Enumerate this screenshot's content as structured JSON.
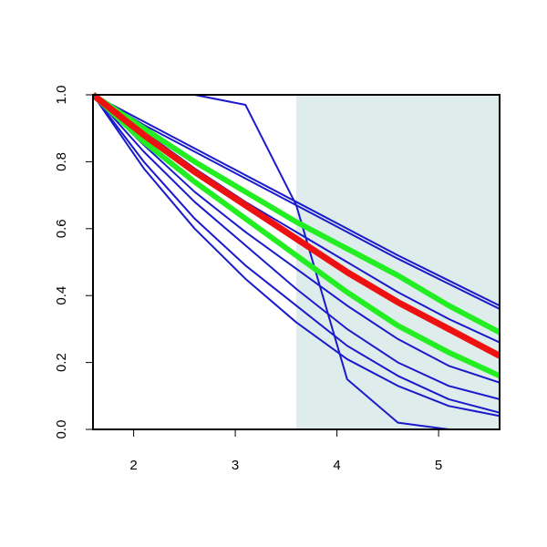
{
  "chart_data": {
    "type": "line",
    "x": [
      1.6,
      2.1,
      2.6,
      3.1,
      3.6,
      4.1,
      4.6,
      5.1,
      5.6
    ],
    "xlim": [
      1.6,
      5.6
    ],
    "xticks": [
      2,
      3,
      4,
      5
    ],
    "ylim": [
      0,
      1
    ],
    "yticks": [
      {
        "value": 0,
        "label": "0.0"
      },
      0.2,
      0.4,
      0.6,
      0.8,
      {
        "value": 1,
        "label": "1.0"
      }
    ],
    "shade": {
      "from": 3.6,
      "color": "#dfecec"
    },
    "series": [
      {
        "color": "#1a1acc",
        "width": 2,
        "values": [
          1,
          0.92,
          0.84,
          0.76,
          0.68,
          0.6,
          0.52,
          0.445,
          0.37
        ]
      },
      {
        "color": "#1a1acc",
        "width": 2,
        "values": [
          1,
          0.91,
          0.83,
          0.75,
          0.67,
          0.59,
          0.51,
          0.435,
          0.36
        ]
      },
      {
        "color": "#1a1acc",
        "width": 2,
        "values": [
          1,
          0.89,
          0.78,
          0.68,
          0.59,
          0.5,
          0.41,
          0.33,
          0.26
        ]
      },
      {
        "color": "#1a1acc",
        "width": 2,
        "values": [
          1,
          0.85,
          0.71,
          0.59,
          0.48,
          0.37,
          0.27,
          0.19,
          0.14
        ]
      },
      {
        "color": "#1a1acc",
        "width": 2,
        "values": [
          1,
          0.83,
          0.68,
          0.55,
          0.42,
          0.3,
          0.2,
          0.13,
          0.09
        ]
      },
      {
        "color": "#1a1acc",
        "width": 2,
        "values": [
          1,
          0.8,
          0.63,
          0.49,
          0.37,
          0.25,
          0.16,
          0.09,
          0.05
        ]
      },
      {
        "color": "#1a1acc",
        "width": 2,
        "values": [
          1,
          0.78,
          0.6,
          0.45,
          0.32,
          0.21,
          0.13,
          0.07,
          0.04
        ]
      },
      {
        "color": "#1a1acc",
        "width": 2,
        "values": [
          1,
          1,
          1,
          0.97,
          0.67,
          0.15,
          0.02,
          0,
          0
        ]
      },
      {
        "color": "#22ee22",
        "width": 6,
        "values": [
          1,
          0.9,
          0.8,
          0.71,
          0.62,
          0.54,
          0.46,
          0.37,
          0.29
        ]
      },
      {
        "color": "#22ee22",
        "width": 6,
        "values": [
          1,
          0.86,
          0.74,
          0.63,
          0.52,
          0.41,
          0.31,
          0.23,
          0.16
        ]
      },
      {
        "color": "#ee1111",
        "width": 7,
        "values": [
          1,
          0.88,
          0.77,
          0.67,
          0.57,
          0.47,
          0.38,
          0.3,
          0.22
        ]
      }
    ]
  }
}
